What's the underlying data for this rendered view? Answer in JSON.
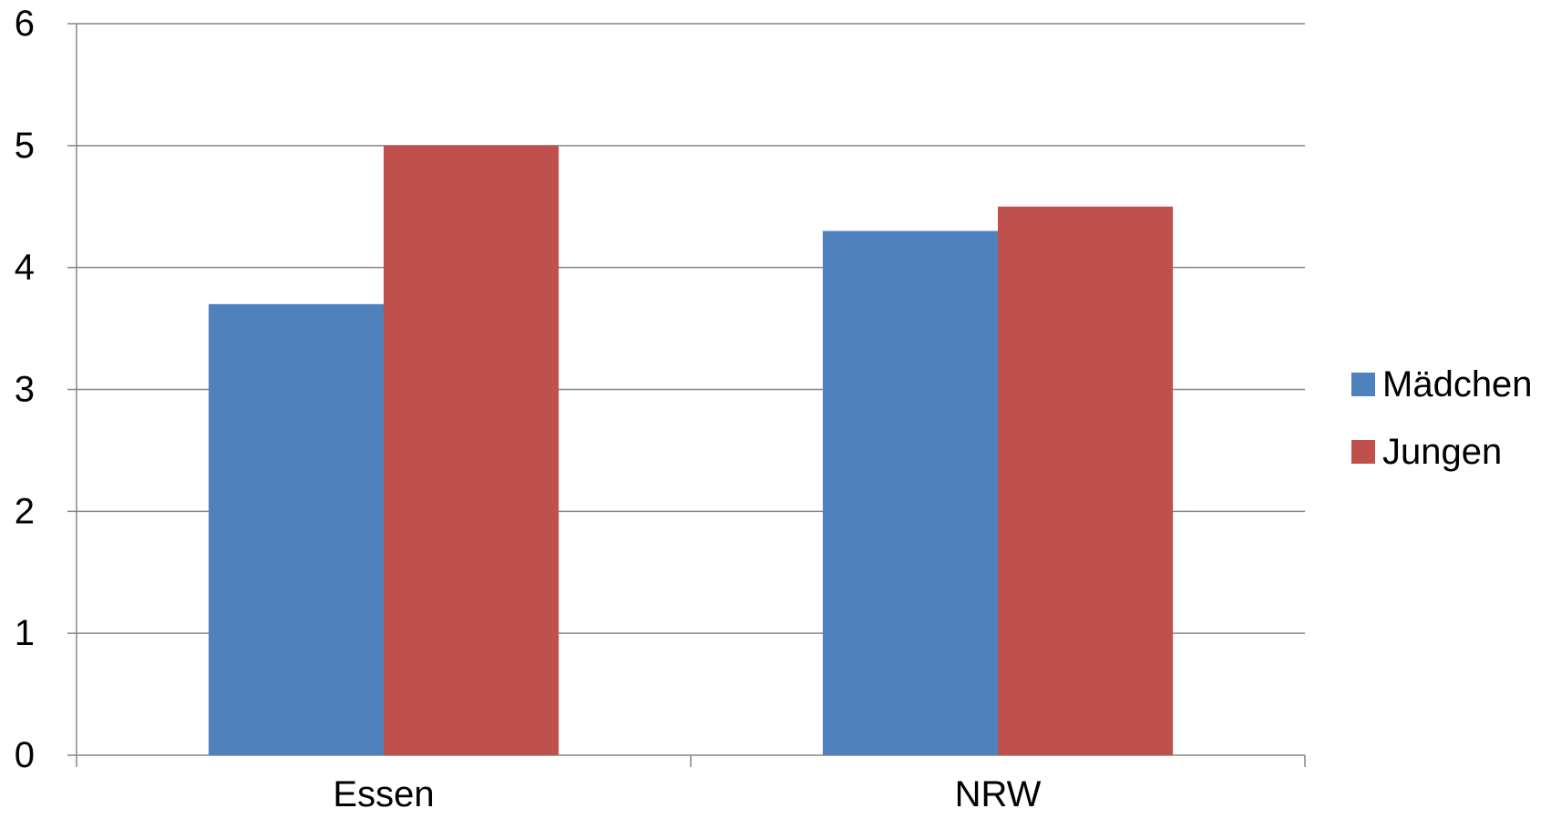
{
  "chart_data": {
    "type": "bar",
    "title": "",
    "xlabel": "",
    "ylabel": "",
    "categories": [
      "Essen",
      "NRW"
    ],
    "series": [
      {
        "name": "Mädchen",
        "values": [
          3.7,
          4.3
        ],
        "color": "#4F81BD"
      },
      {
        "name": "Jungen",
        "values": [
          5.0,
          4.5
        ],
        "color": "#C0504D"
      }
    ],
    "ylim": [
      0,
      6
    ],
    "yticks": [
      "0",
      "1",
      "2",
      "3",
      "4",
      "5",
      "6"
    ],
    "grid": true,
    "legend_position": "right"
  }
}
